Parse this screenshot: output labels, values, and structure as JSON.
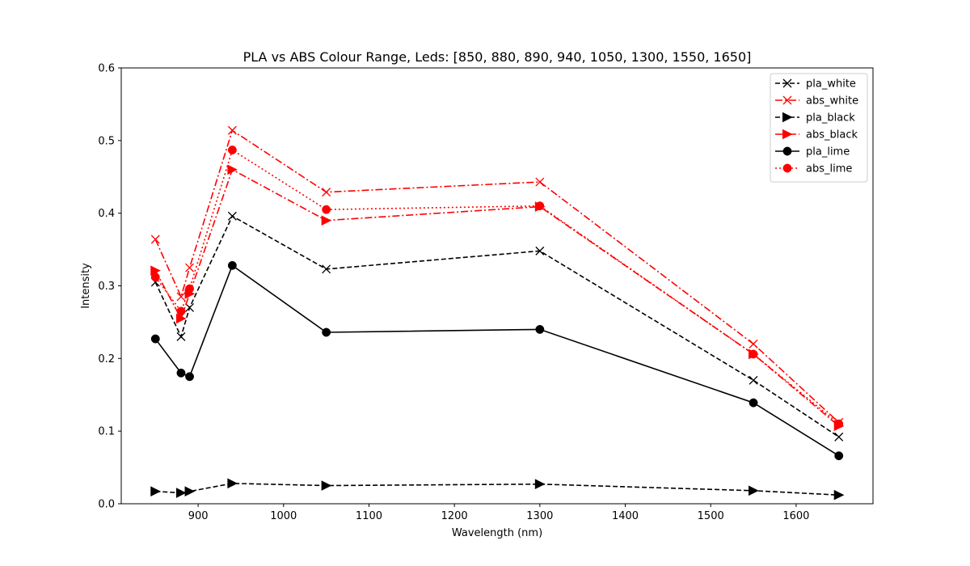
{
  "chart_data": {
    "type": "line",
    "title": "PLA vs ABS Colour Range, Leds: [850, 880, 890, 940, 1050, 1300, 1550, 1650]",
    "xlabel": "Wavelength (nm)",
    "ylabel": "Intensity",
    "xlim": [
      810,
      1690
    ],
    "ylim": [
      0.0,
      0.6
    ],
    "xticks": [
      900,
      1000,
      1100,
      1200,
      1300,
      1400,
      1500,
      1600
    ],
    "yticks": [
      0.0,
      0.1,
      0.2,
      0.3,
      0.4,
      0.5,
      0.6
    ],
    "xtick_labels": [
      "900",
      "1000",
      "1100",
      "1200",
      "1300",
      "1400",
      "1500",
      "1600"
    ],
    "ytick_labels": [
      "0.0",
      "0.1",
      "0.2",
      "0.3",
      "0.4",
      "0.5",
      "0.6"
    ],
    "grid": false,
    "legend_position": "top-right",
    "x": [
      850,
      880,
      890,
      940,
      1050,
      1300,
      1550,
      1650
    ],
    "series": [
      {
        "name": "pla_white",
        "color": "#000000",
        "linestyle": "dashed",
        "marker": "x",
        "values": [
          0.305,
          0.23,
          0.27,
          0.396,
          0.323,
          0.348,
          0.17,
          0.092
        ]
      },
      {
        "name": "abs_white",
        "color": "#ff0000",
        "linestyle": "dashdot",
        "marker": "x",
        "values": [
          0.364,
          0.285,
          0.325,
          0.514,
          0.429,
          0.443,
          0.22,
          0.112
        ]
      },
      {
        "name": "pla_black",
        "color": "#000000",
        "linestyle": "dashed",
        "marker": "triangle-right",
        "values": [
          0.017,
          0.015,
          0.017,
          0.028,
          0.025,
          0.027,
          0.018,
          0.012
        ]
      },
      {
        "name": "abs_black",
        "color": "#ff0000",
        "linestyle": "dashdot",
        "marker": "triangle-right",
        "values": [
          0.321,
          0.255,
          0.289,
          0.46,
          0.39,
          0.409,
          0.206,
          0.107
        ]
      },
      {
        "name": "pla_lime",
        "color": "#000000",
        "linestyle": "solid",
        "marker": "circle",
        "values": [
          0.227,
          0.18,
          0.175,
          0.328,
          0.236,
          0.24,
          0.139,
          0.066
        ]
      },
      {
        "name": "abs_lime",
        "color": "#ff0000",
        "linestyle": "dotted",
        "marker": "circle",
        "values": [
          0.312,
          0.265,
          0.296,
          0.487,
          0.405,
          0.41,
          0.206,
          0.11
        ]
      }
    ]
  }
}
